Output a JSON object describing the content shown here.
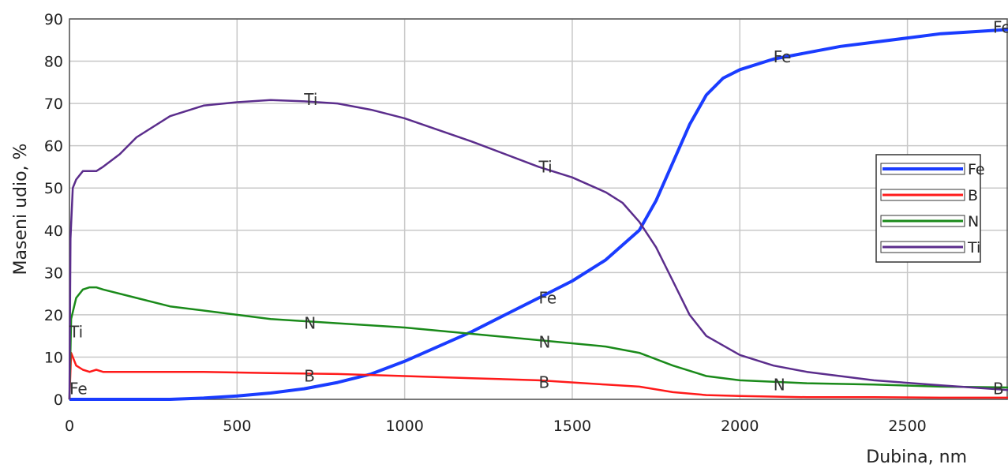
{
  "chart_data": {
    "type": "line",
    "title": "",
    "xlabel": "Dubina, nm",
    "ylabel": "Maseni udio, %",
    "xlim": [
      0,
      2800
    ],
    "ylim": [
      0,
      90
    ],
    "x_ticks": [
      "0",
      "500",
      "1000",
      "1500",
      "2000",
      "2500"
    ],
    "y_ticks": [
      "0",
      "10",
      "20",
      "30",
      "40",
      "50",
      "60",
      "70",
      "80",
      "90"
    ],
    "grid": true,
    "legend_position": "right",
    "series": [
      {
        "name": "Fe",
        "color": "#1a3cff",
        "x": [
          0,
          300,
          400,
          500,
          600,
          700,
          800,
          900,
          1000,
          1100,
          1200,
          1300,
          1400,
          1500,
          1600,
          1700,
          1750,
          1800,
          1850,
          1900,
          1950,
          2000,
          2100,
          2200,
          2300,
          2400,
          2500,
          2600,
          2700,
          2800
        ],
        "values": [
          0,
          0,
          0.3,
          0.8,
          1.5,
          2.5,
          4,
          6,
          9,
          12.5,
          16,
          20,
          24,
          28,
          33,
          40,
          47,
          56,
          65,
          72,
          76,
          78,
          80.5,
          82,
          83.5,
          84.5,
          85.5,
          86.5,
          87,
          87.5
        ]
      },
      {
        "name": "B",
        "color": "#ff1a1a",
        "x": [
          0,
          5,
          20,
          40,
          60,
          80,
          100,
          200,
          400,
          600,
          800,
          1000,
          1200,
          1400,
          1600,
          1700,
          1800,
          1900,
          2000,
          2200,
          2400,
          2600,
          2800
        ],
        "values": [
          0,
          11,
          8,
          7,
          6.5,
          7,
          6.5,
          6.5,
          6.5,
          6.2,
          6,
          5.5,
          5,
          4.5,
          3.5,
          3,
          1.7,
          1,
          0.8,
          0.5,
          0.5,
          0.4,
          0.4
        ]
      },
      {
        "name": "N",
        "color": "#1a8a1a",
        "x": [
          0,
          5,
          20,
          40,
          60,
          80,
          100,
          200,
          300,
          400,
          600,
          800,
          1000,
          1200,
          1400,
          1600,
          1700,
          1800,
          1900,
          2000,
          2200,
          2400,
          2600,
          2800
        ],
        "values": [
          0,
          19,
          24,
          26,
          26.5,
          26.5,
          26,
          24,
          22,
          21,
          19,
          18,
          17,
          15.5,
          14,
          12.5,
          11,
          8,
          5.5,
          4.5,
          3.8,
          3.5,
          3,
          2.8
        ]
      },
      {
        "name": "Ti",
        "color": "#5b2d8c",
        "x": [
          0,
          3,
          10,
          20,
          40,
          60,
          80,
          100,
          150,
          200,
          300,
          400,
          500,
          600,
          700,
          800,
          900,
          1000,
          1200,
          1400,
          1500,
          1600,
          1650,
          1700,
          1750,
          1800,
          1850,
          1900,
          2000,
          2100,
          2200,
          2400,
          2600,
          2800
        ],
        "values": [
          0,
          38,
          50,
          52,
          54,
          54,
          54,
          55,
          58,
          62,
          67,
          69.5,
          70.3,
          70.8,
          70.5,
          70,
          68.5,
          66.5,
          61,
          55,
          52.5,
          49,
          46.5,
          42,
          36,
          28,
          20,
          15,
          10.5,
          8,
          6.5,
          4.5,
          3.3,
          2.2
        ]
      }
    ],
    "annotations": [
      {
        "text": "Ti",
        "x": 0,
        "y": 16
      },
      {
        "text": "Fe",
        "x": 0,
        "y": 2.5
      },
      {
        "text": "Ti",
        "x": 700,
        "y": 71
      },
      {
        "text": "N",
        "x": 700,
        "y": 18
      },
      {
        "text": "B",
        "x": 700,
        "y": 5.5
      },
      {
        "text": "Ti",
        "x": 1400,
        "y": 55
      },
      {
        "text": "Fe",
        "x": 1400,
        "y": 24
      },
      {
        "text": "N",
        "x": 1400,
        "y": 13.5
      },
      {
        "text": "B",
        "x": 1400,
        "y": 4
      },
      {
        "text": "Fe",
        "x": 2100,
        "y": 81
      },
      {
        "text": "N",
        "x": 2100,
        "y": 3.5
      },
      {
        "text": "Fe",
        "x": 2790,
        "y": 88
      },
      {
        "text": "B",
        "x": 2790,
        "y": 2.5
      }
    ]
  }
}
